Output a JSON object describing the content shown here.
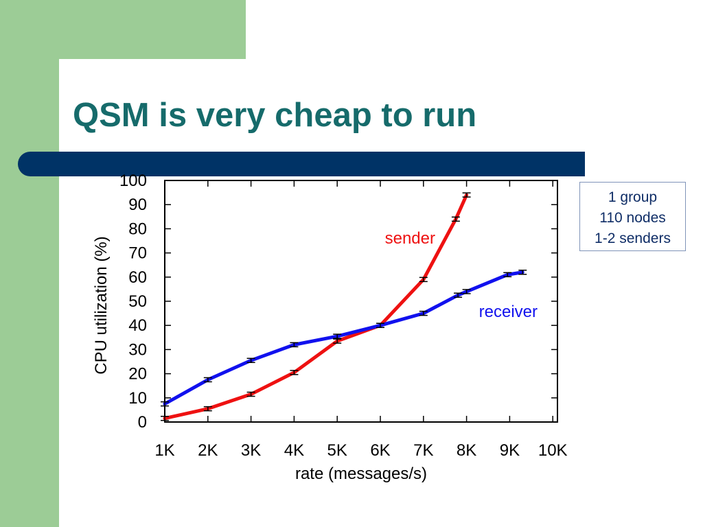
{
  "slide": {
    "title": "QSM is very cheap to run",
    "colors": {
      "green": "#9ccc96",
      "navy": "#003366",
      "title": "#166b6b",
      "info_text": "#0f2d66"
    }
  },
  "info_box": {
    "lines": [
      "1 group",
      "110 nodes",
      "1-2 senders"
    ]
  },
  "chart_data": {
    "type": "line",
    "xlabel": "rate (messages/s)",
    "ylabel": "CPU utilization (%)",
    "x_ticks": [
      1000,
      2000,
      3000,
      4000,
      5000,
      6000,
      7000,
      8000,
      9000,
      10000
    ],
    "x_tick_labels": [
      "1K",
      "2K",
      "3K",
      "4K",
      "5K",
      "6K",
      "7K",
      "8K",
      "9K",
      "10K"
    ],
    "y_ticks": [
      0,
      10,
      20,
      30,
      40,
      50,
      60,
      70,
      80,
      90,
      100
    ],
    "y_tick_labels": [
      "0",
      "10",
      "20",
      "30",
      "40",
      "50",
      "60",
      "70",
      "80",
      "90",
      "100"
    ],
    "xlim": [
      1000,
      10000
    ],
    "ylim": [
      0,
      100
    ],
    "grid": false,
    "error_bars": true,
    "series": [
      {
        "name": "sender",
        "color": "#ee1111",
        "points": [
          [
            1000,
            1.5
          ],
          [
            2000,
            5.5
          ],
          [
            3000,
            11.5
          ],
          [
            4000,
            20.5
          ],
          [
            5000,
            33.5
          ],
          [
            6000,
            40
          ],
          [
            7000,
            59
          ],
          [
            7750,
            84
          ],
          [
            8000,
            94
          ]
        ]
      },
      {
        "name": "receiver",
        "color": "#1111ee",
        "points": [
          [
            1000,
            7.5
          ],
          [
            2000,
            17.5
          ],
          [
            3000,
            25.5
          ],
          [
            4000,
            32
          ],
          [
            5000,
            35.5
          ],
          [
            6000,
            40
          ],
          [
            7000,
            45
          ],
          [
            7800,
            52.5
          ],
          [
            8000,
            54
          ],
          [
            8950,
            61
          ],
          [
            9300,
            62
          ]
        ]
      }
    ]
  }
}
